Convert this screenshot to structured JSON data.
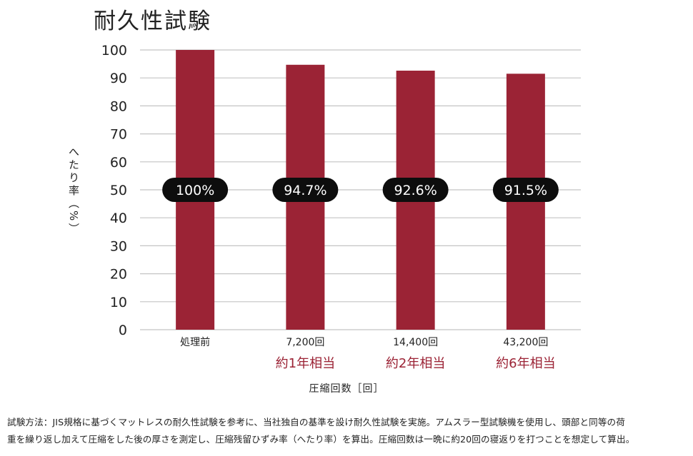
{
  "title": "耐久性試験",
  "chart_data": {
    "type": "bar",
    "title": "耐久性試験",
    "ylabel": "へたり率（%）",
    "xlabel": "圧縮回数［回］",
    "ylim": [
      0,
      100
    ],
    "yticks": [
      "0",
      "10",
      "20",
      "30",
      "40",
      "50",
      "60",
      "70",
      "80",
      "90",
      "100"
    ],
    "grid": true,
    "bar_color": "#9b2335",
    "categories": [
      "処理前",
      "7,200回",
      "14,400回",
      "43,200回"
    ],
    "category_sublabels": [
      "",
      "約1年相当",
      "約2年相当",
      "約6年相当"
    ],
    "values": [
      100,
      94.7,
      92.6,
      91.5
    ],
    "value_labels": [
      "100%",
      "94.7%",
      "92.6%",
      "91.5%"
    ]
  },
  "footnote": {
    "line1": "試験方法：JIS規格に基づくマットレスの耐久性試験を参考に、当社独自の基準を設け耐久性試験を実施。アムスラー型試験機を使用し、頭部と同等の荷",
    "line2": "重を繰り返し加えて圧縮をした後の厚さを測定し、圧縮残留ひずみ率（へたり率）を算出。圧縮回数は一晩に約20回の寝返りを打つことを想定して算出。"
  }
}
